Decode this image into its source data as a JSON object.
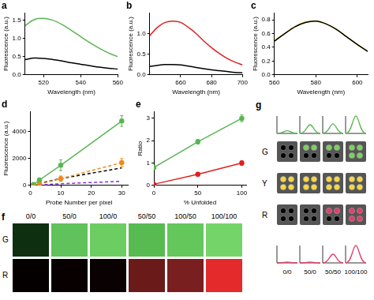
{
  "chart_data": [
    {
      "type": "line",
      "title": "a",
      "x_label": "Wavelength (nm)",
      "y_label": "Fluorescence (a.u.)",
      "x": [
        510,
        515,
        520,
        525,
        530,
        535,
        540,
        545,
        550,
        555,
        560
      ],
      "series": [
        {
          "color": "#5ab552",
          "values": [
            1.35,
            1.52,
            1.55,
            1.5,
            1.38,
            1.22,
            1.05,
            0.88,
            0.73,
            0.6,
            0.5
          ]
        },
        {
          "color": "#000000",
          "values": [
            0.42,
            0.46,
            0.45,
            0.42,
            0.38,
            0.33,
            0.29,
            0.25,
            0.21,
            0.18,
            0.16
          ]
        }
      ],
      "xlim": [
        510,
        560
      ],
      "xticks": [
        520,
        540,
        560
      ],
      "ylim": [
        0,
        1.7
      ],
      "yticks": [
        {
          "value": 0,
          "label": "0.0"
        },
        0.5,
        {
          "value": 1,
          "label": "1.0"
        },
        1.5
      ],
      "grid": false
    },
    {
      "type": "line",
      "title": "b",
      "x_label": "Wavelength (nm)",
      "y_label": "Fluorescence (a.u.)",
      "x": [
        640,
        645,
        650,
        655,
        660,
        665,
        670,
        675,
        680,
        685,
        690,
        695,
        700
      ],
      "series": [
        {
          "color": "#e02020",
          "values": [
            0.95,
            1.15,
            1.27,
            1.3,
            1.27,
            1.15,
            1.0,
            0.82,
            0.66,
            0.52,
            0.4,
            0.31,
            0.24
          ]
        },
        {
          "color": "#000000",
          "values": [
            0.2,
            0.23,
            0.25,
            0.25,
            0.24,
            0.21,
            0.18,
            0.15,
            0.12,
            0.1,
            0.08,
            0.06,
            0.05
          ]
        }
      ],
      "xlim": [
        640,
        700
      ],
      "xticks": [
        660,
        680,
        700
      ],
      "ylim": [
        0,
        1.5
      ],
      "yticks": [
        {
          "value": 0,
          "label": "0.0"
        },
        0.5,
        {
          "value": 1,
          "label": "1.0"
        }
      ],
      "grid": false
    },
    {
      "type": "line",
      "title": "c",
      "x_label": "Wavelength (nm)",
      "y_label": "Fluorescence (a.u.)",
      "x": [
        560,
        565,
        570,
        575,
        580,
        585,
        590,
        595,
        600,
        605
      ],
      "series": [
        {
          "color": "#000000",
          "values": [
            0.49,
            0.6,
            0.7,
            0.76,
            0.78,
            0.74,
            0.66,
            0.55,
            0.44,
            0.34
          ]
        },
        {
          "color": "#e8d21a",
          "values": [
            0.5,
            0.6,
            0.7,
            0.77,
            0.78,
            0.74,
            0.66,
            0.55,
            0.44,
            0.34
          ]
        }
      ],
      "xlim": [
        560,
        605
      ],
      "xticks": [
        560,
        580,
        600
      ],
      "ylim": [
        0,
        0.9
      ],
      "yticks": [
        {
          "value": 0,
          "label": "0.0"
        },
        0.2,
        0.4,
        0.6,
        0.8
      ],
      "grid": false
    },
    {
      "type": "line",
      "title": "d",
      "x_label": "Probe Number per pixel",
      "y_label": "Fluorescence (a.u.)",
      "x": [
        1,
        3,
        10,
        30
      ],
      "series": [
        {
          "color": "#5ab552",
          "marker": "circle",
          "line_style": "solid",
          "values": [
            60,
            400,
            1500,
            4800
          ],
          "errors": [
            50,
            150,
            400,
            400
          ]
        },
        {
          "color": "#f08a1a",
          "marker": "circle",
          "line_style": "dashed",
          "values": [
            10,
            100,
            500,
            1700
          ],
          "errors": [
            20,
            60,
            200,
            300
          ]
        },
        {
          "color": "#000000",
          "line_style": "dashed",
          "values": [
            30,
            150,
            500,
            1300
          ]
        },
        {
          "color": "#8a2be2",
          "line_style": "dashed",
          "values": [
            0,
            30,
            120,
            300
          ]
        }
      ],
      "xlim": [
        0,
        32
      ],
      "xticks": [
        0,
        10,
        20,
        30
      ],
      "ylim": [
        0,
        5500
      ],
      "yticks": [
        0,
        2000,
        4000
      ],
      "grid": false
    },
    {
      "type": "line",
      "title": "e",
      "x_label": "% Unfolded",
      "y_label": "Ratio",
      "x": [
        0,
        50,
        100
      ],
      "series": [
        {
          "color": "#5ab552",
          "marker": "circle",
          "line_style": "solid",
          "values": [
            0.8,
            1.95,
            3.0
          ],
          "errors": [
            0.08,
            0.1,
            0.15
          ]
        },
        {
          "color": "#e02020",
          "marker": "circle",
          "line_style": "solid",
          "values": [
            0.05,
            0.5,
            1.0
          ],
          "errors": [
            0.05,
            0.08,
            0.1
          ]
        }
      ],
      "xlim": [
        0,
        105
      ],
      "xticks": [
        0,
        50,
        100
      ],
      "ylim": [
        0,
        3.3
      ],
      "yticks": [
        0,
        1,
        2,
        3
      ],
      "grid": false
    }
  ],
  "panel_f": {
    "label": "f",
    "columns": [
      "0/0",
      "50/0",
      "100/0",
      "50/50",
      "100/50",
      "100/100"
    ],
    "rows": [
      {
        "label": "G",
        "colors": [
          "#0e2f10",
          "#5fc25a",
          "#6ccd62",
          "#58bb52",
          "#64c75c",
          "#74d46a"
        ]
      },
      {
        "label": "R",
        "colors": [
          "#050000",
          "#080000",
          "#0a0202",
          "#6b1a1a",
          "#7a1f1f",
          "#e42a2a"
        ]
      }
    ]
  },
  "panel_g": {
    "label": "g",
    "columns": [
      "0/0",
      "50/0",
      "50/50",
      "100/100"
    ],
    "spectra": [
      {
        "color": "#5ab552",
        "peaks": [
          0.15,
          0.5,
          0.55,
          1
        ]
      },
      {
        "color": "#e0406a",
        "peaks": [
          0.05,
          0.05,
          0.5,
          1
        ]
      }
    ],
    "rows": [
      {
        "label": "G",
        "color": "#7ccf5e",
        "lit": [
          0,
          2,
          2,
          4
        ]
      },
      {
        "label": "Y",
        "color": "#f5d742",
        "lit": [
          4,
          4,
          4,
          4
        ]
      },
      {
        "label": "R",
        "color": "#e0406a",
        "lit": [
          0,
          0,
          2,
          4
        ]
      }
    ]
  }
}
